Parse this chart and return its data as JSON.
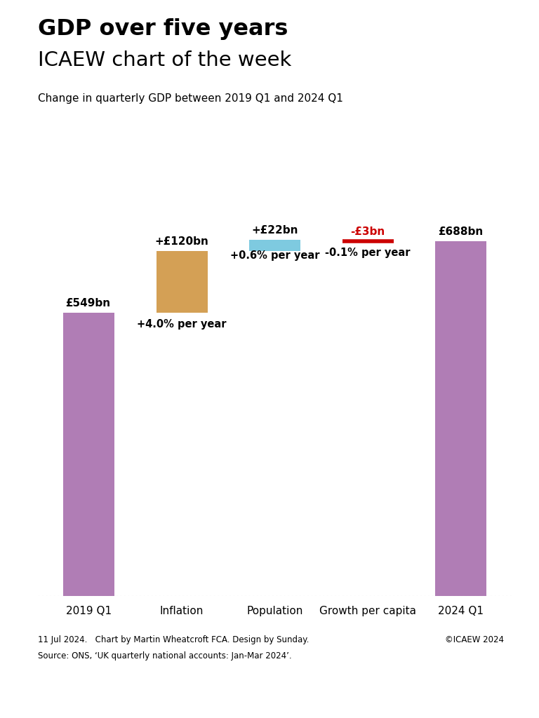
{
  "title_line1": "GDP over five years",
  "title_line2": "ICAEW chart of the week",
  "subtitle": "Change in quarterly GDP between 2019 Q1 and 2024 Q1",
  "categories": [
    "2019 Q1",
    "Inflation",
    "Population",
    "Growth per capita",
    "2024 Q1"
  ],
  "bar_bottoms": [
    0,
    549,
    669,
    688,
    0
  ],
  "bar_heights": [
    549,
    120,
    22,
    -3,
    688
  ],
  "bar_colors": [
    "#b07db5",
    "#d4a055",
    "#7ecae0",
    "#cc0000",
    "#b07db5"
  ],
  "bar_labels": [
    "£549bn",
    "+£120bn",
    "+£22bn",
    "-£3bn",
    "£688bn"
  ],
  "bar_sublabels": [
    "",
    "+4.0% per year",
    "+0.6% per year",
    "-0.1% per year",
    ""
  ],
  "ylim": [
    0,
    780
  ],
  "footer_left_line1": "11 Jul 2024.   Chart by Martin Wheatcroft FCA. Design by Sunday.",
  "footer_left_line2": "Source: ONS, ‘UK quarterly national accounts: Jan-Mar 2024’.",
  "footer_right": "©ICAEW 2024",
  "background_color": "#ffffff",
  "text_color": "#000000",
  "red_color": "#cc0000"
}
